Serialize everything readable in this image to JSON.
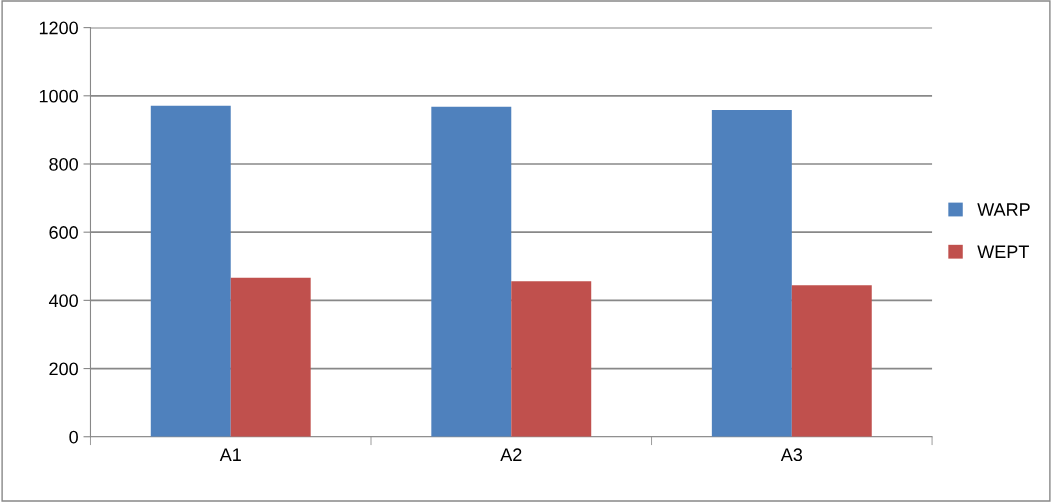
{
  "chart_data": {
    "type": "bar",
    "categories": [
      "A1",
      "A2",
      "A3"
    ],
    "series": [
      {
        "name": "WARP",
        "color": "#4f81bd",
        "values": [
          971,
          968,
          958
        ]
      },
      {
        "name": "WEPT",
        "color": "#c0504d",
        "values": [
          466,
          456,
          444
        ]
      }
    ],
    "ylim": [
      0,
      1200
    ],
    "yticks": [
      0,
      200,
      400,
      600,
      800,
      1000,
      1200
    ],
    "grid": "y",
    "legend": "right"
  }
}
